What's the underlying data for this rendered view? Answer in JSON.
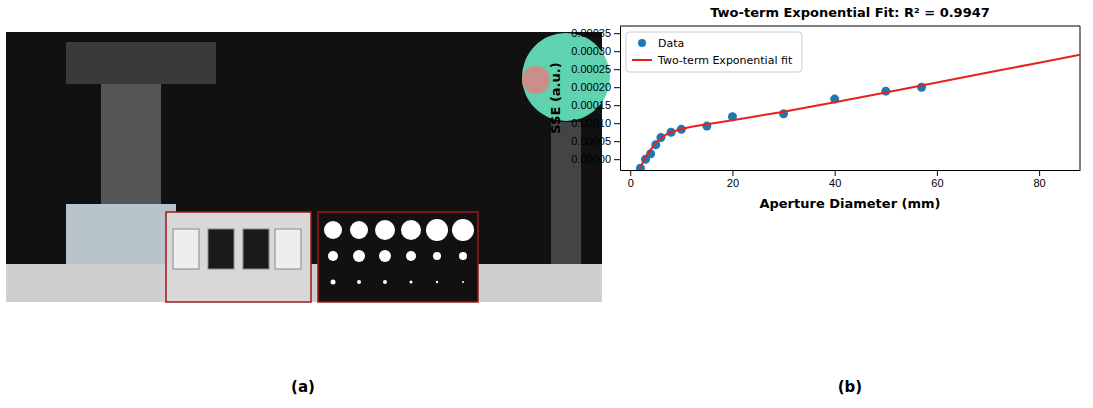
{
  "figure": {
    "panel_labels": [
      "(a)",
      "(b)"
    ]
  },
  "chart_data": {
    "type": "scatter",
    "title": "Two-term Exponential Fit: R² = 0.9947",
    "x_label": "Aperture Diameter (mm)",
    "y_label": "SSE (a.u.)",
    "xlim": [
      -2,
      88
    ],
    "ylim": [
      -3e-05,
      0.00037
    ],
    "xticks": [
      0,
      20,
      40,
      60,
      80
    ],
    "yticks": [
      {
        "value": 0,
        "label": "0.00000"
      },
      {
        "value": 5e-05,
        "label": "0.00005"
      },
      {
        "value": 0.0001,
        "label": "0.00010"
      },
      {
        "value": 0.00015,
        "label": "0.00015"
      },
      {
        "value": 0.0002,
        "label": "0.00020"
      },
      {
        "value": 0.00025,
        "label": "0.00025"
      },
      {
        "value": 0.0003,
        "label": "0.00030"
      },
      {
        "value": 0.00035,
        "label": "0.00035"
      }
    ],
    "grid": false,
    "legend": "upper left",
    "series": [
      {
        "name": "Data",
        "type": "scatter",
        "color": "#1f77b4",
        "marker": "circle",
        "x": [
          2,
          3,
          4,
          5,
          6,
          8,
          10,
          15,
          20,
          30,
          40,
          50,
          57
        ],
        "values": [
          -2.5e-05,
          0.0,
          1.5e-05,
          4e-05,
          6e-05,
          7.5e-05,
          8.3e-05,
          9.2e-05,
          0.000118,
          0.000126,
          0.000167,
          0.000189,
          0.0002
        ]
      },
      {
        "name": "Two-term Exponential fit",
        "type": "line",
        "color": "#e8211c",
        "line_style": "solid",
        "x": [
          2,
          3,
          4,
          5,
          6,
          7,
          8,
          10,
          12,
          15,
          20,
          30,
          40,
          50,
          60,
          70,
          80,
          88
        ],
        "values": [
          -2.2e-05,
          5e-06,
          2.7e-05,
          4.5e-05,
          5.8e-05,
          6.8e-05,
          7.5e-05,
          8.4e-05,
          9e-05,
          9.7e-05,
          0.000108,
          0.000132,
          0.000158,
          0.000185,
          0.000213,
          0.000241,
          0.000268,
          0.00029
        ]
      }
    ]
  }
}
